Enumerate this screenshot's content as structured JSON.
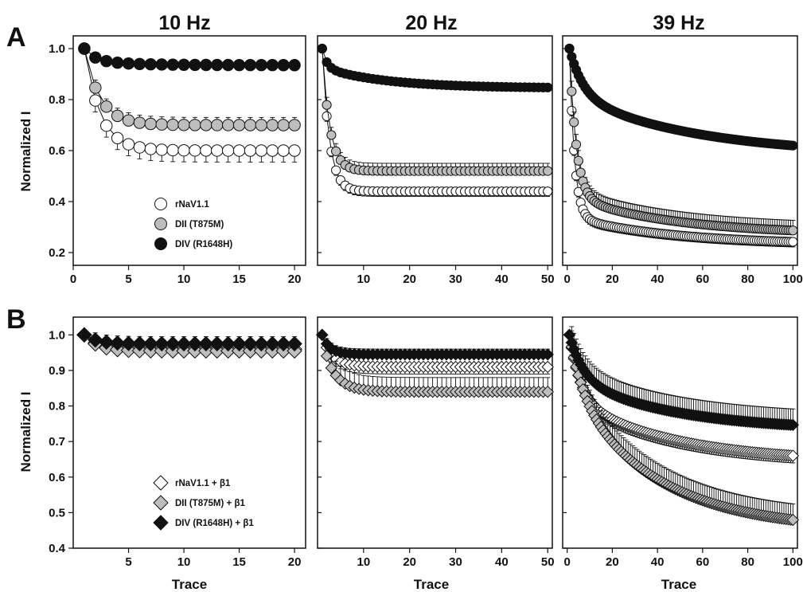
{
  "figure": {
    "col_titles": [
      "10 Hz",
      "20 Hz",
      "39 Hz"
    ],
    "panel_letters": [
      "A",
      "B"
    ],
    "ylabel": "Normalized I",
    "xlabel": "Trace"
  },
  "colors": {
    "open": "#ffffff",
    "gray": "#bdbdbd",
    "black": "#111111",
    "stroke": "#111111"
  },
  "chart_data": [
    {
      "type": "scatter",
      "panel": "A",
      "column": "10 Hz",
      "xlim": [
        0,
        21
      ],
      "ylim": [
        0.15,
        1.05
      ],
      "xticks": [
        0,
        5,
        10,
        15,
        20
      ],
      "yticks": [
        0.2,
        0.4,
        0.6,
        0.8,
        1.0
      ],
      "legend_position": "bottom-center",
      "series": [
        {
          "name": "rNaV1.1",
          "marker": "circle",
          "fill": "open",
          "tau": 1.5,
          "plateau": 0.66,
          "tau2": 1,
          "plateau_slope": 0.06,
          "err": 0.045
        },
        {
          "name": "DII (T875M)",
          "marker": "circle",
          "fill": "gray",
          "tau": 1.5,
          "plateau": 0.75,
          "tau2": 1,
          "plateau_slope": 0.05,
          "err": 0.03
        },
        {
          "name": "DIV (R1648H)",
          "marker": "circle",
          "fill": "black",
          "tau": 4,
          "plateau": 0.985,
          "tau2": 1,
          "plateau_slope": 0.05,
          "err": 0.005
        }
      ]
    },
    {
      "type": "scatter",
      "panel": "A",
      "column": "20 Hz",
      "xlim": [
        0,
        51
      ],
      "ylim": [
        0.15,
        1.05
      ],
      "xticks": [
        10,
        20,
        30,
        40,
        50
      ],
      "yticks": [
        0.2,
        0.4,
        0.6,
        0.8,
        1.0
      ],
      "series": [
        {
          "name": "rNaV1.1",
          "marker": "circle",
          "fill": "open",
          "tau": 1.6,
          "plateau": 0.47,
          "tau2": 1,
          "plateau_slope": 0.03,
          "err": 0.02
        },
        {
          "name": "DII (T875M)",
          "marker": "circle",
          "fill": "gray",
          "tau": 1.7,
          "plateau": 0.56,
          "tau2": 1,
          "plateau_slope": 0.04,
          "err": 0.03
        },
        {
          "name": "DIV (R1648H)",
          "marker": "circle",
          "fill": "black",
          "tau": 14,
          "plateau": 0.92,
          "tau2": 1,
          "plateau_slope": 0.075,
          "err": 0.008
        }
      ]
    },
    {
      "type": "scatter",
      "panel": "A",
      "column": "39 Hz",
      "xlim": [
        -2,
        102
      ],
      "ylim": [
        0.15,
        1.05
      ],
      "xticks": [
        0,
        20,
        40,
        60,
        80,
        100
      ],
      "yticks": [
        0.2,
        0.4,
        0.6,
        0.8,
        1.0
      ],
      "series": [
        {
          "name": "rNaV1.1",
          "marker": "circle",
          "fill": "open",
          "tau": 2.2,
          "plateau": 0.34,
          "tau2": 45,
          "plateau_slope": 0.11,
          "err": 0.02
        },
        {
          "name": "DII (T875M)",
          "marker": "circle",
          "fill": "gray",
          "tau": 3.0,
          "plateau": 0.42,
          "tau2": 45,
          "plateau_slope": 0.15,
          "err": 0.04
        },
        {
          "name": "DIV (R1648H)",
          "marker": "circle",
          "fill": "black",
          "tau": 6,
          "plateau": 0.82,
          "tau2": 55,
          "plateau_slope": 0.24,
          "err": 0.01
        }
      ]
    },
    {
      "type": "scatter",
      "panel": "B",
      "column": "10 Hz",
      "xlim": [
        0,
        21
      ],
      "ylim": [
        0.4,
        1.05
      ],
      "xticks": [
        5,
        10,
        15,
        20
      ],
      "yticks": [
        0.4,
        0.5,
        0.6,
        0.7,
        0.8,
        0.9,
        1.0
      ],
      "legend_position": "bottom-center",
      "series": [
        {
          "name": "rNaV1.1 + β1",
          "marker": "diamond",
          "fill": "open",
          "tau": 1.2,
          "plateau": 0.96,
          "tau2": 1,
          "plateau_slope": 0.0,
          "err": 0.015
        },
        {
          "name": "DII (T875M) + β1",
          "marker": "diamond",
          "fill": "gray",
          "tau": 1.2,
          "plateau": 0.955,
          "tau2": 1,
          "plateau_slope": 0.0,
          "err": 0.015
        },
        {
          "name": "DIV (R1648H) + β1",
          "marker": "diamond",
          "fill": "black",
          "tau": 1.2,
          "plateau": 0.975,
          "tau2": 1,
          "plateau_slope": 0.0,
          "err": 0.02
        }
      ]
    },
    {
      "type": "scatter",
      "panel": "B",
      "column": "20 Hz",
      "xlim": [
        0,
        51
      ],
      "ylim": [
        0.4,
        1.05
      ],
      "xticks": [
        10,
        20,
        30,
        40,
        50
      ],
      "yticks": [
        0.4,
        0.5,
        0.6,
        0.7,
        0.8,
        0.9,
        1.0
      ],
      "series": [
        {
          "name": "rNaV1.1 + β1",
          "marker": "diamond",
          "fill": "open",
          "tau": 2.5,
          "plateau": 0.93,
          "tau2": 1,
          "plateau_slope": 0.02,
          "err": 0.02
        },
        {
          "name": "DII (T875M) + β1",
          "marker": "diamond",
          "fill": "gray",
          "tau": 3.0,
          "plateau": 0.88,
          "tau2": 1,
          "plateau_slope": 0.04,
          "err": 0.04
        },
        {
          "name": "DIV (R1648H) + β1",
          "marker": "diamond",
          "fill": "black",
          "tau": 2.0,
          "plateau": 0.96,
          "tau2": 1,
          "plateau_slope": 0.015,
          "err": 0.015
        }
      ]
    },
    {
      "type": "scatter",
      "panel": "B",
      "column": "39 Hz",
      "xlim": [
        -2,
        102
      ],
      "ylim": [
        0.4,
        1.05
      ],
      "xticks": [
        0,
        20,
        40,
        60,
        80,
        100
      ],
      "yticks": [
        0.4,
        0.5,
        0.6,
        0.7,
        0.8,
        0.9,
        1.0
      ],
      "series": [
        {
          "name": "rNaV1.1 + β1",
          "marker": "diamond",
          "fill": "open",
          "tau": 5,
          "plateau": 0.82,
          "tau2": 45,
          "plateau_slope": 0.18,
          "err": 0.02
        },
        {
          "name": "DII (T875M) + β1",
          "marker": "diamond",
          "fill": "gray",
          "tau": 6,
          "plateau": 0.85,
          "tau2": 38,
          "plateau_slope": 0.4,
          "err": 0.045
        },
        {
          "name": "DIV (R1648H) + β1",
          "marker": "diamond",
          "fill": "black",
          "tau": 6,
          "plateau": 0.88,
          "tau2": 45,
          "plateau_slope": 0.15,
          "err": 0.045
        }
      ]
    }
  ]
}
